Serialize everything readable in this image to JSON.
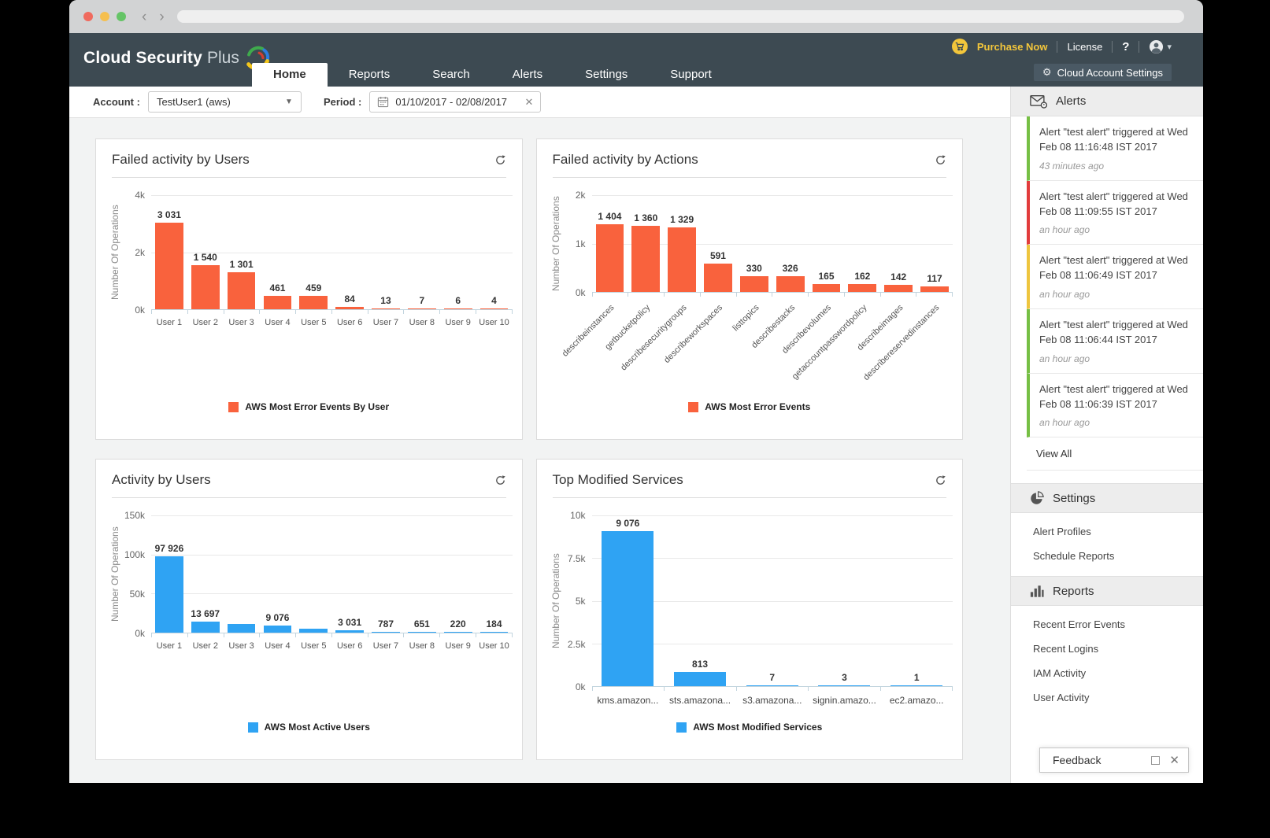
{
  "header": {
    "logo_primary": "Cloud Security",
    "logo_secondary": "Plus",
    "nav": [
      {
        "label": "Home",
        "active": true
      },
      {
        "label": "Reports",
        "active": false
      },
      {
        "label": "Search",
        "active": false
      },
      {
        "label": "Alerts",
        "active": false
      },
      {
        "label": "Settings",
        "active": false
      },
      {
        "label": "Support",
        "active": false
      }
    ],
    "purchase_now": "Purchase Now",
    "license": "License",
    "help": "?",
    "cloud_account_settings": "Cloud Account Settings"
  },
  "toolbar": {
    "account_label": "Account :",
    "account_value": "TestUser1 (aws)",
    "period_label": "Period :",
    "period_value": "01/10/2017 - 02/08/2017"
  },
  "chart_data": [
    {
      "type": "bar",
      "title": "Failed activity by Users",
      "legend": "AWS Most Error Events By User",
      "legend_position": "bottom",
      "color": "#f9623d",
      "ylabel": "Number Of Operations",
      "ylim": [
        0,
        4000
      ],
      "grid": true,
      "y_ticks": [
        {
          "value": 0,
          "label": "0k"
        },
        {
          "value": 2000,
          "label": "2k"
        },
        {
          "value": 4000,
          "label": "4k"
        }
      ],
      "categories": [
        "User 1",
        "User 2",
        "User 3",
        "User 4",
        "User 5",
        "User 6",
        "User 7",
        "User 8",
        "User 9",
        "User 10"
      ],
      "values": [
        3031,
        1540,
        1301,
        461,
        459,
        84,
        13,
        7,
        6,
        4
      ],
      "data_labels": [
        "3 031",
        "1 540",
        "1 301",
        "461",
        "459",
        "84",
        "13",
        "7",
        "6",
        "4"
      ]
    },
    {
      "type": "bar",
      "title": "Failed activity by Actions",
      "legend": "AWS Most Error Events",
      "legend_position": "bottom",
      "color": "#f9623d",
      "ylabel": "Number Of Operations",
      "ylim": [
        0,
        2000
      ],
      "grid": true,
      "y_ticks": [
        {
          "value": 0,
          "label": "0k"
        },
        {
          "value": 1000,
          "label": "1k"
        },
        {
          "value": 2000,
          "label": "2k"
        }
      ],
      "categories": [
        "describeinstances",
        "getbucketpolicy",
        "describesecuritygroups",
        "describeworkspaces",
        "listtopics",
        "describestacks",
        "describevolumes",
        "getaccountpasswordpolicy",
        "describeimages",
        "describereservedinstances"
      ],
      "values": [
        1404,
        1360,
        1329,
        591,
        330,
        326,
        165,
        162,
        142,
        117
      ],
      "data_labels": [
        "1 404",
        "1 360",
        "1 329",
        "591",
        "330",
        "326",
        "165",
        "162",
        "142",
        "117"
      ],
      "rotate_x_labels": true
    },
    {
      "type": "bar",
      "title": "Activity by Users",
      "legend": "AWS Most Active Users",
      "legend_position": "bottom",
      "color": "#2fa3f3",
      "ylabel": "Number Of Operations",
      "ylim": [
        0,
        150000
      ],
      "grid": true,
      "y_ticks": [
        {
          "value": 0,
          "label": "0k"
        },
        {
          "value": 50000,
          "label": "50k"
        },
        {
          "value": 100000,
          "label": "100k"
        },
        {
          "value": 150000,
          "label": "150k"
        }
      ],
      "categories": [
        "User 1",
        "User 2",
        "User 3",
        "User 4",
        "User 5",
        "User 6",
        "User 7",
        "User 8",
        "User 9",
        "User 10"
      ],
      "values": [
        97926,
        13697,
        11000,
        9076,
        5000,
        3031,
        787,
        651,
        220,
        184
      ],
      "data_labels": [
        "97 926",
        "13 697",
        null,
        "9 076",
        null,
        "3 031",
        "787",
        "651",
        "220",
        "184"
      ],
      "unlabeled_bars_estimated": [
        "User 3",
        "User 5"
      ]
    },
    {
      "type": "bar",
      "title": "Top Modified Services",
      "legend": "AWS Most Modified Services",
      "legend_position": "bottom",
      "color": "#2fa3f3",
      "ylabel": "Number Of Operations",
      "ylim": [
        0,
        10000
      ],
      "grid": true,
      "y_ticks": [
        {
          "value": 0,
          "label": "0k"
        },
        {
          "value": 2500,
          "label": "2.5k"
        },
        {
          "value": 5000,
          "label": "5k"
        },
        {
          "value": 7500,
          "label": "7.5k"
        },
        {
          "value": 10000,
          "label": "10k"
        }
      ],
      "categories": [
        "kms.amazon...",
        "sts.amazona...",
        "s3.amazona...",
        "signin.amazo...",
        "ec2.amazo..."
      ],
      "values": [
        9076,
        813,
        7,
        3,
        1
      ],
      "data_labels": [
        "9 076",
        "813",
        "7",
        "3",
        "1"
      ]
    }
  ],
  "sidebar": {
    "alerts_title": "Alerts",
    "alerts": [
      {
        "text": "Alert \"test alert\" triggered at Wed Feb 08 11:16:48 IST 2017",
        "time": "43 minutes ago",
        "color": "#76bf44"
      },
      {
        "text": "Alert \"test alert\" triggered at Wed Feb 08 11:09:55 IST 2017",
        "time": "an hour ago",
        "color": "#e23c3c"
      },
      {
        "text": "Alert \"test alert\" triggered at Wed Feb 08 11:06:49 IST 2017",
        "time": "an hour ago",
        "color": "#eec53e"
      },
      {
        "text": "Alert \"test alert\" triggered at Wed Feb 08 11:06:44 IST 2017",
        "time": "an hour ago",
        "color": "#76bf44"
      },
      {
        "text": "Alert \"test alert\" triggered at Wed Feb 08 11:06:39 IST 2017",
        "time": "an hour ago",
        "color": "#76bf44"
      }
    ],
    "view_all": "View All",
    "settings_title": "Settings",
    "settings_items": [
      "Alert Profiles",
      "Schedule Reports"
    ],
    "reports_title": "Reports",
    "reports_items": [
      "Recent Error Events",
      "Recent Logins",
      "IAM Activity",
      "User Activity"
    ]
  },
  "feedback": {
    "label": "Feedback"
  },
  "colors": {
    "header_dark": "#3d4a52",
    "accent_yellow": "#f3c63b",
    "bar_orange": "#f9623d",
    "bar_blue": "#2fa3f3",
    "alert_green": "#76bf44",
    "alert_red": "#e23c3c",
    "alert_yellow": "#eec53e"
  }
}
